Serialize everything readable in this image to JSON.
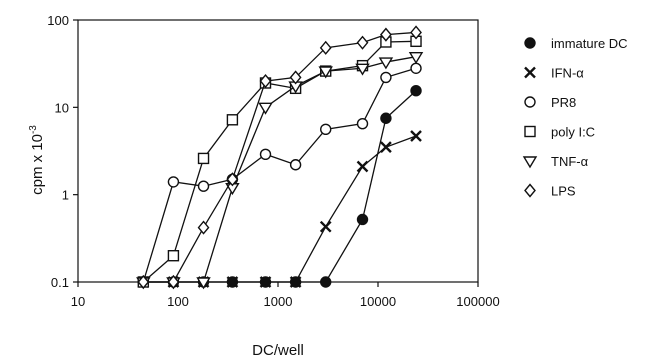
{
  "chart_data": {
    "type": "line",
    "title": "",
    "xlabel": "DC/well",
    "ylabel": "cpm x 10",
    "ylabel_exponent": "-3",
    "x_scale": "log",
    "y_scale": "log",
    "xlim": [
      10,
      100000
    ],
    "ylim": [
      0.1,
      100
    ],
    "x_ticks": [
      10,
      100,
      1000,
      10000,
      100000
    ],
    "x_tick_labels": [
      "10",
      "100",
      "1000",
      "10000",
      "100000"
    ],
    "y_ticks": [
      0.1,
      1,
      10,
      100
    ],
    "y_tick_labels": [
      "0.1",
      "1",
      "10",
      "100"
    ],
    "grid": false,
    "legend_position": "right",
    "series": [
      {
        "name": "immature DC",
        "marker": "filled-circle",
        "x": [
          45,
          90,
          180,
          350,
          750,
          1500,
          3000,
          7000,
          12000,
          24000
        ],
        "y": [
          0.1,
          0.1,
          0.1,
          0.1,
          0.1,
          0.1,
          0.1,
          0.52,
          7.5,
          15.5
        ]
      },
      {
        "name": "IFN-α",
        "marker": "x",
        "x": [
          45,
          90,
          180,
          350,
          750,
          1500,
          3000,
          7000,
          12000,
          24000
        ],
        "y": [
          0.1,
          0.1,
          0.1,
          0.1,
          0.1,
          0.1,
          0.43,
          2.1,
          3.5,
          4.7
        ]
      },
      {
        "name": "PR8",
        "marker": "open-circle",
        "x": [
          45,
          90,
          180,
          350,
          750,
          1500,
          3000,
          7000,
          12000,
          24000
        ],
        "y": [
          0.1,
          1.4,
          1.25,
          1.5,
          2.9,
          2.2,
          5.6,
          6.5,
          22,
          28
        ]
      },
      {
        "name": "poly I:C",
        "marker": "open-square",
        "x": [
          45,
          90,
          180,
          350,
          750,
          1500,
          3000,
          7000,
          12000,
          24000
        ],
        "y": [
          0.1,
          0.2,
          2.6,
          7.2,
          19,
          16.5,
          26,
          30,
          56,
          57
        ]
      },
      {
        "name": "TNF-α",
        "marker": "open-triangle-down",
        "x": [
          45,
          90,
          180,
          350,
          750,
          1500,
          3000,
          7000,
          12000,
          24000
        ],
        "y": [
          0.1,
          0.1,
          0.1,
          1.2,
          10,
          17.5,
          26,
          28,
          33,
          38
        ]
      },
      {
        "name": "LPS",
        "marker": "open-diamond",
        "x": [
          45,
          90,
          180,
          350,
          750,
          1500,
          3000,
          7000,
          12000,
          24000
        ],
        "y": [
          0.1,
          0.1,
          0.42,
          1.5,
          20,
          22,
          48,
          55,
          68,
          72
        ]
      }
    ]
  }
}
